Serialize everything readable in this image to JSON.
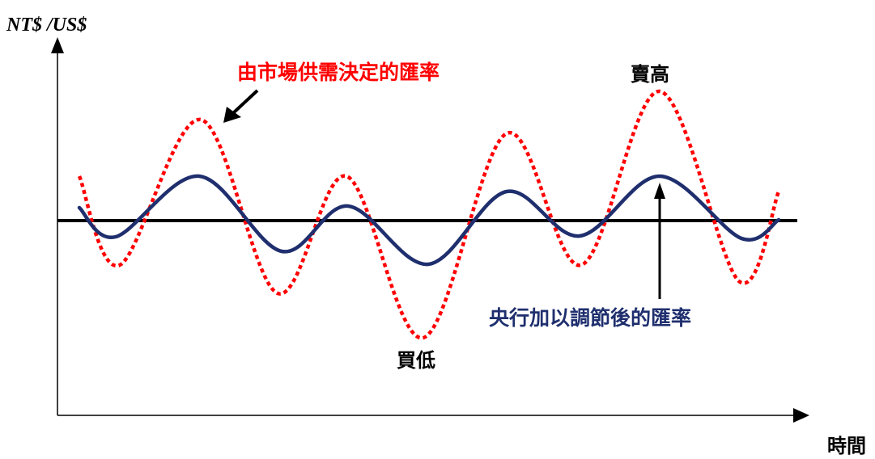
{
  "axes": {
    "y_label": "NT$ /US$",
    "x_label": "時間"
  },
  "series": {
    "market_rate": {
      "label": "由市場供需決定的匯率",
      "color": "#ff0000"
    },
    "managed_rate": {
      "label": "央行加以調節後的匯率",
      "color": "#1f2f6e"
    },
    "baseline": {
      "color": "#000000"
    }
  },
  "annotations": {
    "sell_high": "賣高",
    "buy_low": "買低"
  }
}
